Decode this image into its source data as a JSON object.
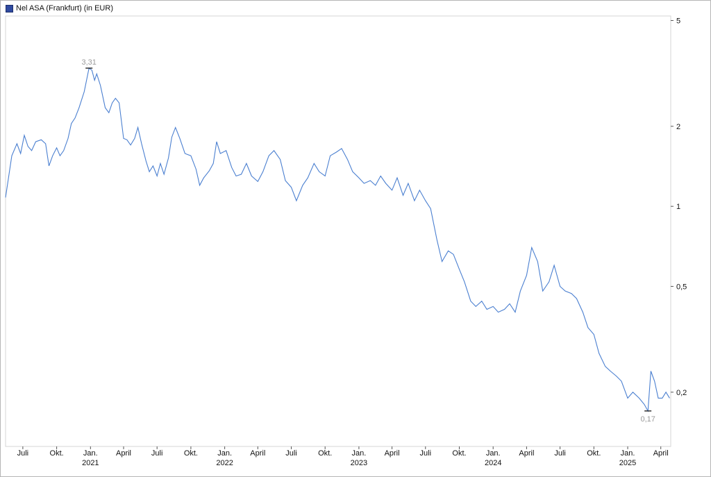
{
  "chart_data": {
    "type": "line",
    "y_scale": "log",
    "ylim": [
      0.125,
      5.2
    ],
    "series": [
      {
        "name": "Nel ASA (Frankfurt) (in EUR)",
        "color": "#4a7fd0",
        "points": [
          [
            "2020-05-15",
            1.08
          ],
          [
            "2020-06-01",
            1.55
          ],
          [
            "2020-06-15",
            1.72
          ],
          [
            "2020-06-25",
            1.58
          ],
          [
            "2020-07-05",
            1.85
          ],
          [
            "2020-07-15",
            1.68
          ],
          [
            "2020-07-25",
            1.62
          ],
          [
            "2020-08-05",
            1.75
          ],
          [
            "2020-08-20",
            1.78
          ],
          [
            "2020-09-01",
            1.72
          ],
          [
            "2020-09-10",
            1.42
          ],
          [
            "2020-09-20",
            1.55
          ],
          [
            "2020-10-01",
            1.66
          ],
          [
            "2020-10-10",
            1.55
          ],
          [
            "2020-10-20",
            1.62
          ],
          [
            "2020-11-01",
            1.8
          ],
          [
            "2020-11-10",
            2.05
          ],
          [
            "2020-11-20",
            2.15
          ],
          [
            "2020-12-01",
            2.35
          ],
          [
            "2020-12-15",
            2.7
          ],
          [
            "2020-12-28",
            3.31
          ],
          [
            "2021-01-05",
            3.25
          ],
          [
            "2021-01-12",
            2.98
          ],
          [
            "2021-01-18",
            3.15
          ],
          [
            "2021-01-28",
            2.85
          ],
          [
            "2021-02-10",
            2.35
          ],
          [
            "2021-02-20",
            2.25
          ],
          [
            "2021-03-01",
            2.45
          ],
          [
            "2021-03-10",
            2.55
          ],
          [
            "2021-03-20",
            2.45
          ],
          [
            "2021-04-01",
            1.8
          ],
          [
            "2021-04-10",
            1.78
          ],
          [
            "2021-04-20",
            1.7
          ],
          [
            "2021-05-01",
            1.8
          ],
          [
            "2021-05-10",
            1.98
          ],
          [
            "2021-05-20",
            1.72
          ],
          [
            "2021-06-01",
            1.48
          ],
          [
            "2021-06-10",
            1.35
          ],
          [
            "2021-06-20",
            1.42
          ],
          [
            "2021-07-01",
            1.3
          ],
          [
            "2021-07-10",
            1.45
          ],
          [
            "2021-07-20",
            1.32
          ],
          [
            "2021-08-01",
            1.52
          ],
          [
            "2021-08-10",
            1.82
          ],
          [
            "2021-08-20",
            1.98
          ],
          [
            "2021-09-01",
            1.8
          ],
          [
            "2021-09-15",
            1.58
          ],
          [
            "2021-10-01",
            1.55
          ],
          [
            "2021-10-15",
            1.38
          ],
          [
            "2021-10-25",
            1.2
          ],
          [
            "2021-11-05",
            1.28
          ],
          [
            "2021-11-20",
            1.36
          ],
          [
            "2021-12-01",
            1.45
          ],
          [
            "2021-12-10",
            1.75
          ],
          [
            "2021-12-20",
            1.58
          ],
          [
            "2022-01-05",
            1.62
          ],
          [
            "2022-01-20",
            1.4
          ],
          [
            "2022-02-01",
            1.3
          ],
          [
            "2022-02-15",
            1.32
          ],
          [
            "2022-03-01",
            1.45
          ],
          [
            "2022-03-15",
            1.3
          ],
          [
            "2022-04-01",
            1.24
          ],
          [
            "2022-04-15",
            1.35
          ],
          [
            "2022-05-01",
            1.55
          ],
          [
            "2022-05-15",
            1.62
          ],
          [
            "2022-06-01",
            1.5
          ],
          [
            "2022-06-15",
            1.25
          ],
          [
            "2022-07-01",
            1.18
          ],
          [
            "2022-07-15",
            1.05
          ],
          [
            "2022-08-01",
            1.2
          ],
          [
            "2022-08-15",
            1.28
          ],
          [
            "2022-09-01",
            1.45
          ],
          [
            "2022-09-15",
            1.35
          ],
          [
            "2022-10-01",
            1.3
          ],
          [
            "2022-10-15",
            1.55
          ],
          [
            "2022-11-01",
            1.6
          ],
          [
            "2022-11-15",
            1.65
          ],
          [
            "2022-12-01",
            1.5
          ],
          [
            "2022-12-15",
            1.35
          ],
          [
            "2023-01-01",
            1.28
          ],
          [
            "2023-01-15",
            1.22
          ],
          [
            "2023-02-01",
            1.25
          ],
          [
            "2023-02-15",
            1.2
          ],
          [
            "2023-03-01",
            1.3
          ],
          [
            "2023-03-15",
            1.22
          ],
          [
            "2023-04-01",
            1.15
          ],
          [
            "2023-04-15",
            1.28
          ],
          [
            "2023-05-01",
            1.1
          ],
          [
            "2023-05-15",
            1.22
          ],
          [
            "2023-06-01",
            1.05
          ],
          [
            "2023-06-15",
            1.15
          ],
          [
            "2023-07-01",
            1.05
          ],
          [
            "2023-07-15",
            0.98
          ],
          [
            "2023-08-01",
            0.75
          ],
          [
            "2023-08-15",
            0.62
          ],
          [
            "2023-09-01",
            0.68
          ],
          [
            "2023-09-15",
            0.66
          ],
          [
            "2023-10-01",
            0.58
          ],
          [
            "2023-10-15",
            0.52
          ],
          [
            "2023-11-01",
            0.44
          ],
          [
            "2023-11-15",
            0.42
          ],
          [
            "2023-12-01",
            0.44
          ],
          [
            "2023-12-15",
            0.41
          ],
          [
            "2024-01-01",
            0.42
          ],
          [
            "2024-01-15",
            0.4
          ],
          [
            "2024-02-01",
            0.41
          ],
          [
            "2024-02-15",
            0.43
          ],
          [
            "2024-03-01",
            0.4
          ],
          [
            "2024-03-15",
            0.48
          ],
          [
            "2024-04-01",
            0.55
          ],
          [
            "2024-04-15",
            0.7
          ],
          [
            "2024-05-01",
            0.62
          ],
          [
            "2024-05-15",
            0.48
          ],
          [
            "2024-06-01",
            0.52
          ],
          [
            "2024-06-15",
            0.6
          ],
          [
            "2024-07-01",
            0.5
          ],
          [
            "2024-07-15",
            0.48
          ],
          [
            "2024-08-01",
            0.47
          ],
          [
            "2024-08-15",
            0.45
          ],
          [
            "2024-09-01",
            0.4
          ],
          [
            "2024-09-15",
            0.35
          ],
          [
            "2024-10-01",
            0.33
          ],
          [
            "2024-10-15",
            0.28
          ],
          [
            "2024-11-01",
            0.25
          ],
          [
            "2024-11-15",
            0.24
          ],
          [
            "2024-12-01",
            0.23
          ],
          [
            "2024-12-15",
            0.22
          ],
          [
            "2025-01-01",
            0.19
          ],
          [
            "2025-01-15",
            0.2
          ],
          [
            "2025-02-01",
            0.19
          ],
          [
            "2025-02-15",
            0.18
          ],
          [
            "2025-02-25",
            0.17
          ],
          [
            "2025-03-05",
            0.24
          ],
          [
            "2025-03-15",
            0.22
          ],
          [
            "2025-03-25",
            0.19
          ],
          [
            "2025-04-05",
            0.19
          ],
          [
            "2025-04-15",
            0.2
          ],
          [
            "2025-04-25",
            0.19
          ]
        ]
      }
    ],
    "y_ticks": [
      {
        "value": 5,
        "label": "5"
      },
      {
        "value": 2,
        "label": "2"
      },
      {
        "value": 1,
        "label": "1"
      },
      {
        "value": 0.5,
        "label": "0,5"
      },
      {
        "value": 0.2,
        "label": "0,2"
      }
    ],
    "x_ticks": [
      {
        "date": "2020-07-01",
        "label": "Juli",
        "year": ""
      },
      {
        "date": "2020-10-01",
        "label": "Okt.",
        "year": ""
      },
      {
        "date": "2021-01-01",
        "label": "Jan.",
        "year": "2021"
      },
      {
        "date": "2021-04-01",
        "label": "April",
        "year": ""
      },
      {
        "date": "2021-07-01",
        "label": "Juli",
        "year": ""
      },
      {
        "date": "2021-10-01",
        "label": "Okt.",
        "year": ""
      },
      {
        "date": "2022-01-01",
        "label": "Jan.",
        "year": "2022"
      },
      {
        "date": "2022-04-01",
        "label": "April",
        "year": ""
      },
      {
        "date": "2022-07-01",
        "label": "Juli",
        "year": ""
      },
      {
        "date": "2022-10-01",
        "label": "Okt.",
        "year": ""
      },
      {
        "date": "2023-01-01",
        "label": "Jan.",
        "year": "2023"
      },
      {
        "date": "2023-04-01",
        "label": "April",
        "year": ""
      },
      {
        "date": "2023-07-01",
        "label": "Juli",
        "year": ""
      },
      {
        "date": "2023-10-01",
        "label": "Okt.",
        "year": ""
      },
      {
        "date": "2024-01-01",
        "label": "Jan.",
        "year": "2024"
      },
      {
        "date": "2024-04-01",
        "label": "April",
        "year": ""
      },
      {
        "date": "2024-07-01",
        "label": "Juli",
        "year": ""
      },
      {
        "date": "2024-10-01",
        "label": "Okt.",
        "year": ""
      },
      {
        "date": "2025-01-01",
        "label": "Jan.",
        "year": "2025"
      },
      {
        "date": "2025-04-01",
        "label": "April",
        "year": ""
      }
    ],
    "annotations": [
      {
        "kind": "max",
        "date": "2020-12-28",
        "value": 3.31,
        "label": "3,31"
      },
      {
        "kind": "min",
        "date": "2025-02-25",
        "value": 0.17,
        "label": "0,17"
      }
    ],
    "legend": "top-left",
    "grid": false
  }
}
